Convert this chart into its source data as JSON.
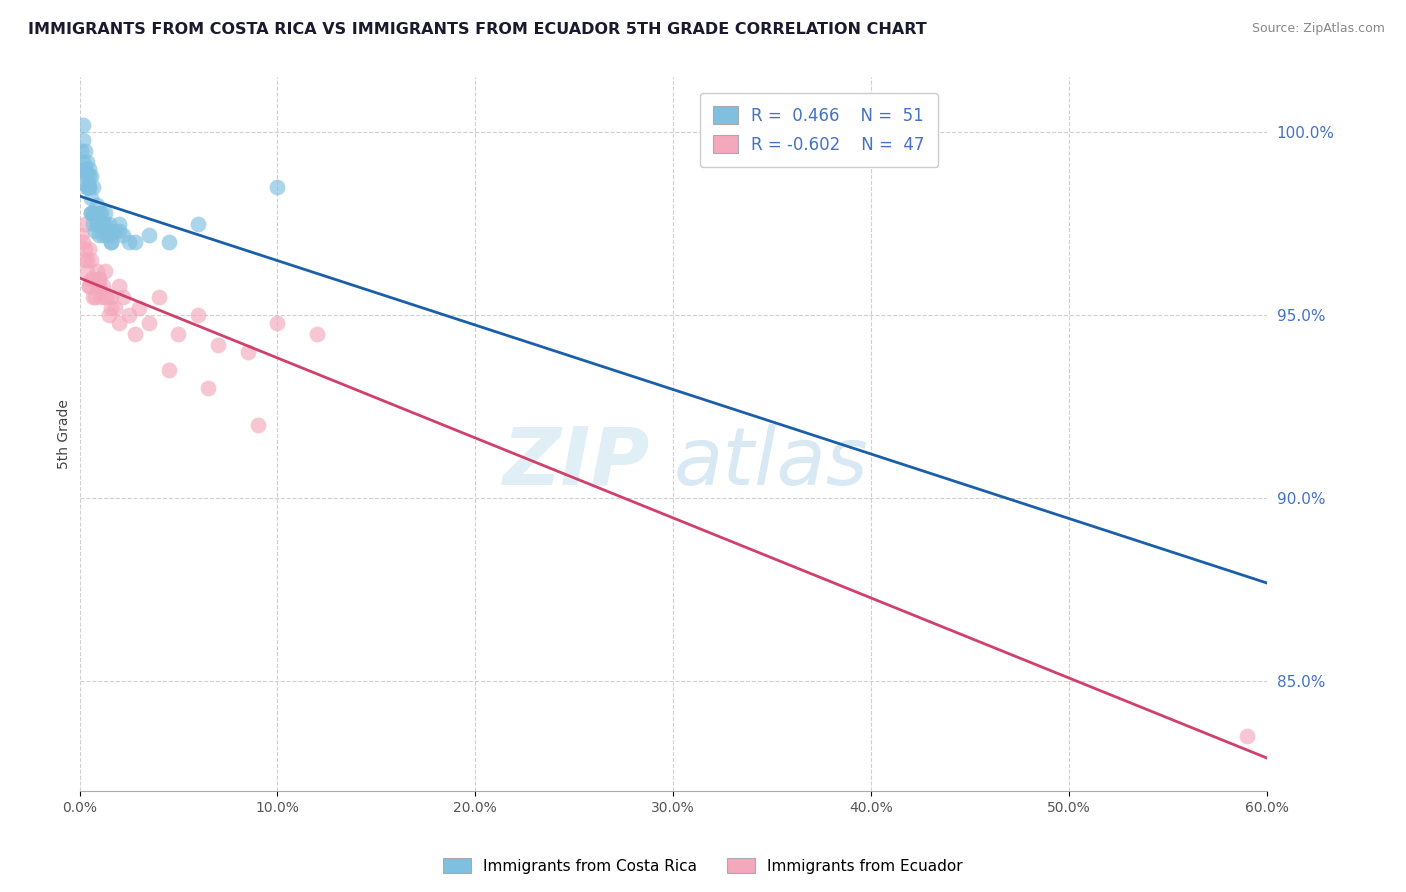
{
  "title": "IMMIGRANTS FROM COSTA RICA VS IMMIGRANTS FROM ECUADOR 5TH GRADE CORRELATION CHART",
  "source": "Source: ZipAtlas.com",
  "ylabel": "5th Grade",
  "xlim": [
    0.0,
    60.0
  ],
  "ylim": [
    82.0,
    101.5
  ],
  "y_ticks": [
    85.0,
    90.0,
    95.0,
    100.0
  ],
  "y_tick_labels": [
    "85.0%",
    "90.0%",
    "95.0%",
    "100.0%"
  ],
  "x_ticks": [
    0,
    10,
    20,
    30,
    40,
    50,
    60
  ],
  "legend1_r": "0.466",
  "legend1_n": "51",
  "legend2_r": "-0.602",
  "legend2_n": "47",
  "legend1_label": "Immigrants from Costa Rica",
  "legend2_label": "Immigrants from Ecuador",
  "blue_color": "#7fbfdf",
  "pink_color": "#f4a8bc",
  "blue_line_color": "#1a5fa8",
  "pink_line_color": "#d0406a",
  "costa_rica_x": [
    0.1,
    0.2,
    0.2,
    0.3,
    0.3,
    0.4,
    0.4,
    0.5,
    0.5,
    0.6,
    0.6,
    0.7,
    0.8,
    0.9,
    1.0,
    1.1,
    1.2,
    1.3,
    1.4,
    1.5,
    1.6,
    1.8,
    2.0,
    2.2,
    2.5,
    0.3,
    0.4,
    0.5,
    0.6,
    0.7,
    0.8,
    1.0,
    1.2,
    1.5,
    0.2,
    0.3,
    0.5,
    0.7,
    1.0,
    1.3,
    0.4,
    0.6,
    0.9,
    1.2,
    1.6,
    2.0,
    2.8,
    3.5,
    4.5,
    6.0,
    10.0
  ],
  "costa_rica_y": [
    99.5,
    99.8,
    100.2,
    99.0,
    99.5,
    99.2,
    98.8,
    99.0,
    98.5,
    98.8,
    98.2,
    98.5,
    97.8,
    98.0,
    97.5,
    97.8,
    97.5,
    97.8,
    97.2,
    97.5,
    97.0,
    97.3,
    97.5,
    97.2,
    97.0,
    99.0,
    98.5,
    98.8,
    97.8,
    97.5,
    97.3,
    97.8,
    97.5,
    97.2,
    99.2,
    98.8,
    98.5,
    97.8,
    97.2,
    97.5,
    98.5,
    97.8,
    97.5,
    97.2,
    97.0,
    97.3,
    97.0,
    97.2,
    97.0,
    97.5,
    98.5
  ],
  "ecuador_x": [
    0.1,
    0.2,
    0.3,
    0.3,
    0.4,
    0.4,
    0.5,
    0.5,
    0.6,
    0.7,
    0.8,
    0.9,
    1.0,
    1.0,
    1.1,
    1.2,
    1.3,
    1.4,
    1.5,
    1.6,
    1.8,
    2.0,
    2.2,
    2.5,
    3.0,
    3.5,
    4.0,
    5.0,
    6.0,
    7.0,
    8.5,
    10.0,
    12.0,
    0.3,
    0.5,
    0.7,
    1.0,
    1.3,
    1.6,
    2.0,
    2.8,
    4.5,
    6.5,
    9.0,
    59.0,
    0.6,
    0.9
  ],
  "ecuador_y": [
    97.2,
    97.0,
    96.8,
    97.5,
    96.5,
    96.2,
    96.8,
    95.8,
    96.5,
    96.0,
    95.5,
    96.2,
    95.8,
    96.0,
    95.5,
    95.8,
    96.2,
    95.5,
    95.0,
    95.5,
    95.2,
    95.8,
    95.5,
    95.0,
    95.2,
    94.8,
    95.5,
    94.5,
    95.0,
    94.2,
    94.0,
    94.8,
    94.5,
    96.5,
    95.8,
    95.5,
    96.0,
    95.5,
    95.2,
    94.8,
    94.5,
    93.5,
    93.0,
    92.0,
    83.5,
    96.0,
    95.8
  ]
}
